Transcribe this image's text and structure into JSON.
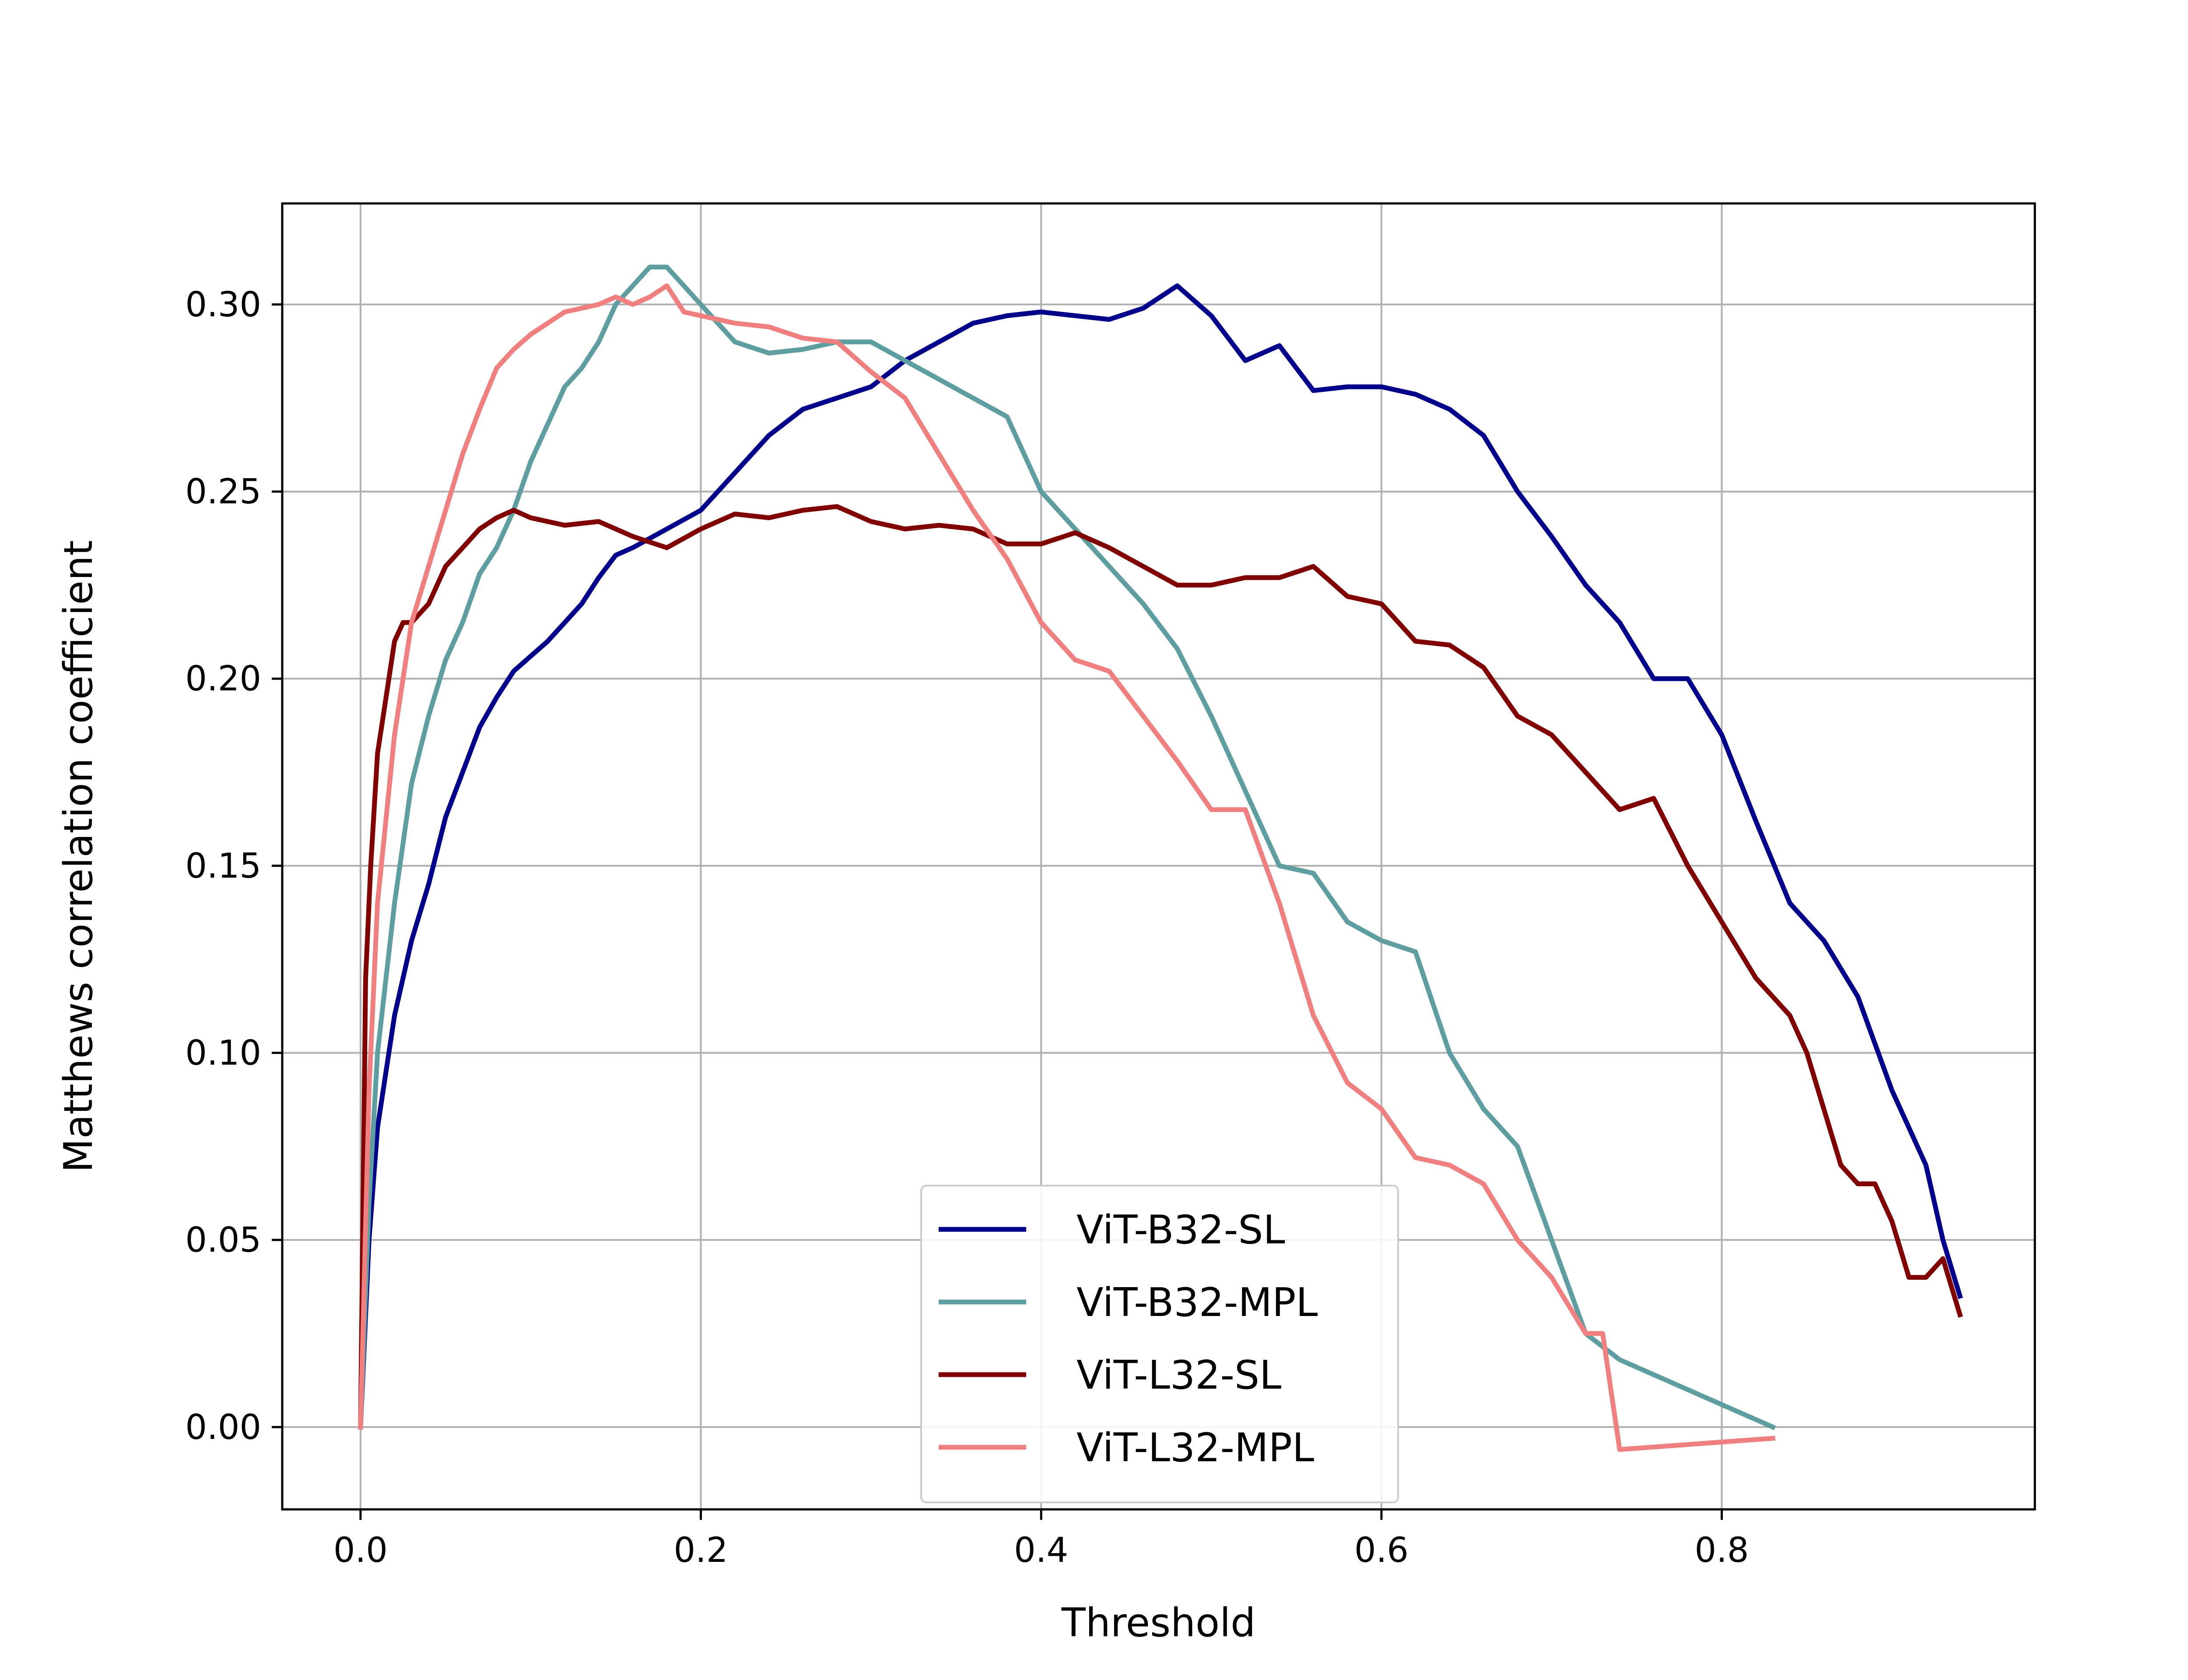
{
  "chart_data": {
    "type": "line",
    "title": "",
    "xlabel": "Threshold",
    "ylabel": "Matthews correlation coefficient",
    "xlim": [
      -0.046,
      0.984
    ],
    "ylim": [
      -0.022,
      0.327
    ],
    "xticks": [
      "0.0",
      "0.2",
      "0.4",
      "0.6",
      "0.8"
    ],
    "yticks": [
      "0.00",
      "0.05",
      "0.10",
      "0.15",
      "0.20",
      "0.25",
      "0.30"
    ],
    "grid": true,
    "legend_position": "lower-center",
    "series": [
      {
        "name": "ViT-B32-SL",
        "color": "#00008B",
        "x": [
          0.0,
          0.005,
          0.01,
          0.02,
          0.03,
          0.04,
          0.05,
          0.06,
          0.07,
          0.08,
          0.09,
          0.1,
          0.11,
          0.12,
          0.13,
          0.14,
          0.15,
          0.16,
          0.18,
          0.2,
          0.22,
          0.24,
          0.26,
          0.28,
          0.3,
          0.32,
          0.34,
          0.36,
          0.38,
          0.4,
          0.42,
          0.44,
          0.46,
          0.48,
          0.5,
          0.52,
          0.54,
          0.56,
          0.58,
          0.6,
          0.62,
          0.64,
          0.66,
          0.68,
          0.7,
          0.72,
          0.74,
          0.76,
          0.78,
          0.8,
          0.82,
          0.84,
          0.86,
          0.88,
          0.9,
          0.91,
          0.92,
          0.93,
          0.94
        ],
        "y": [
          0.0,
          0.05,
          0.08,
          0.11,
          0.13,
          0.145,
          0.163,
          0.175,
          0.187,
          0.195,
          0.202,
          0.206,
          0.21,
          0.215,
          0.22,
          0.227,
          0.233,
          0.235,
          0.24,
          0.245,
          0.255,
          0.265,
          0.272,
          0.275,
          0.278,
          0.285,
          0.29,
          0.295,
          0.297,
          0.298,
          0.297,
          0.296,
          0.299,
          0.305,
          0.297,
          0.285,
          0.289,
          0.277,
          0.278,
          0.278,
          0.276,
          0.272,
          0.265,
          0.25,
          0.238,
          0.225,
          0.215,
          0.2,
          0.2,
          0.185,
          0.162,
          0.14,
          0.13,
          0.115,
          0.09,
          0.08,
          0.07,
          0.05,
          0.035
        ]
      },
      {
        "name": "ViT-B32-MPL",
        "color": "#5F9EA0",
        "x": [
          0.0,
          0.005,
          0.01,
          0.02,
          0.03,
          0.04,
          0.05,
          0.06,
          0.07,
          0.08,
          0.09,
          0.1,
          0.11,
          0.12,
          0.13,
          0.14,
          0.15,
          0.16,
          0.17,
          0.18,
          0.19,
          0.2,
          0.22,
          0.24,
          0.26,
          0.28,
          0.3,
          0.32,
          0.34,
          0.36,
          0.38,
          0.4,
          0.42,
          0.44,
          0.46,
          0.48,
          0.5,
          0.52,
          0.54,
          0.56,
          0.58,
          0.6,
          0.62,
          0.64,
          0.66,
          0.68,
          0.7,
          0.72,
          0.74,
          0.83
        ],
        "y": [
          0.0,
          0.06,
          0.1,
          0.14,
          0.172,
          0.19,
          0.205,
          0.215,
          0.228,
          0.235,
          0.245,
          0.258,
          0.268,
          0.278,
          0.283,
          0.29,
          0.3,
          0.305,
          0.31,
          0.31,
          0.305,
          0.3,
          0.29,
          0.287,
          0.288,
          0.29,
          0.29,
          0.285,
          0.28,
          0.275,
          0.27,
          0.25,
          0.24,
          0.23,
          0.22,
          0.208,
          0.19,
          0.17,
          0.15,
          0.148,
          0.135,
          0.13,
          0.127,
          0.1,
          0.085,
          0.075,
          0.05,
          0.025,
          0.018,
          0.0
        ]
      },
      {
        "name": "ViT-L32-SL",
        "color": "#800000",
        "x": [
          0.0,
          0.003,
          0.006,
          0.01,
          0.015,
          0.02,
          0.025,
          0.03,
          0.04,
          0.05,
          0.06,
          0.07,
          0.08,
          0.09,
          0.1,
          0.12,
          0.14,
          0.16,
          0.18,
          0.2,
          0.22,
          0.24,
          0.26,
          0.28,
          0.3,
          0.32,
          0.34,
          0.36,
          0.38,
          0.4,
          0.42,
          0.44,
          0.46,
          0.48,
          0.5,
          0.52,
          0.54,
          0.56,
          0.58,
          0.6,
          0.62,
          0.64,
          0.66,
          0.68,
          0.7,
          0.72,
          0.74,
          0.76,
          0.78,
          0.8,
          0.82,
          0.84,
          0.85,
          0.86,
          0.87,
          0.88,
          0.89,
          0.9,
          0.91,
          0.92,
          0.93,
          0.94
        ],
        "y": [
          0.0,
          0.12,
          0.15,
          0.18,
          0.195,
          0.21,
          0.215,
          0.215,
          0.22,
          0.23,
          0.235,
          0.24,
          0.243,
          0.245,
          0.243,
          0.241,
          0.242,
          0.238,
          0.235,
          0.24,
          0.244,
          0.243,
          0.245,
          0.246,
          0.242,
          0.24,
          0.241,
          0.24,
          0.236,
          0.236,
          0.239,
          0.235,
          0.23,
          0.225,
          0.225,
          0.227,
          0.227,
          0.23,
          0.222,
          0.22,
          0.21,
          0.209,
          0.203,
          0.19,
          0.185,
          0.175,
          0.165,
          0.168,
          0.15,
          0.135,
          0.12,
          0.11,
          0.1,
          0.085,
          0.07,
          0.065,
          0.065,
          0.055,
          0.04,
          0.04,
          0.045,
          0.03
        ]
      },
      {
        "name": "ViT-L32-MPL",
        "color": "#F08080",
        "x": [
          0.0,
          0.005,
          0.01,
          0.02,
          0.03,
          0.04,
          0.05,
          0.06,
          0.07,
          0.08,
          0.09,
          0.1,
          0.11,
          0.12,
          0.13,
          0.14,
          0.15,
          0.16,
          0.17,
          0.18,
          0.19,
          0.2,
          0.22,
          0.24,
          0.26,
          0.28,
          0.3,
          0.32,
          0.34,
          0.36,
          0.38,
          0.4,
          0.42,
          0.44,
          0.46,
          0.48,
          0.5,
          0.52,
          0.54,
          0.56,
          0.58,
          0.6,
          0.62,
          0.64,
          0.66,
          0.68,
          0.7,
          0.72,
          0.73,
          0.74,
          0.83
        ],
        "y": [
          0.0,
          0.09,
          0.14,
          0.185,
          0.215,
          0.23,
          0.245,
          0.26,
          0.272,
          0.283,
          0.288,
          0.292,
          0.295,
          0.298,
          0.299,
          0.3,
          0.302,
          0.3,
          0.302,
          0.305,
          0.298,
          0.297,
          0.295,
          0.294,
          0.291,
          0.29,
          0.282,
          0.275,
          0.26,
          0.245,
          0.232,
          0.215,
          0.205,
          0.202,
          0.19,
          0.178,
          0.165,
          0.165,
          0.14,
          0.11,
          0.092,
          0.085,
          0.072,
          0.07,
          0.065,
          0.05,
          0.04,
          0.025,
          0.025,
          -0.006,
          -0.003
        ]
      }
    ]
  }
}
